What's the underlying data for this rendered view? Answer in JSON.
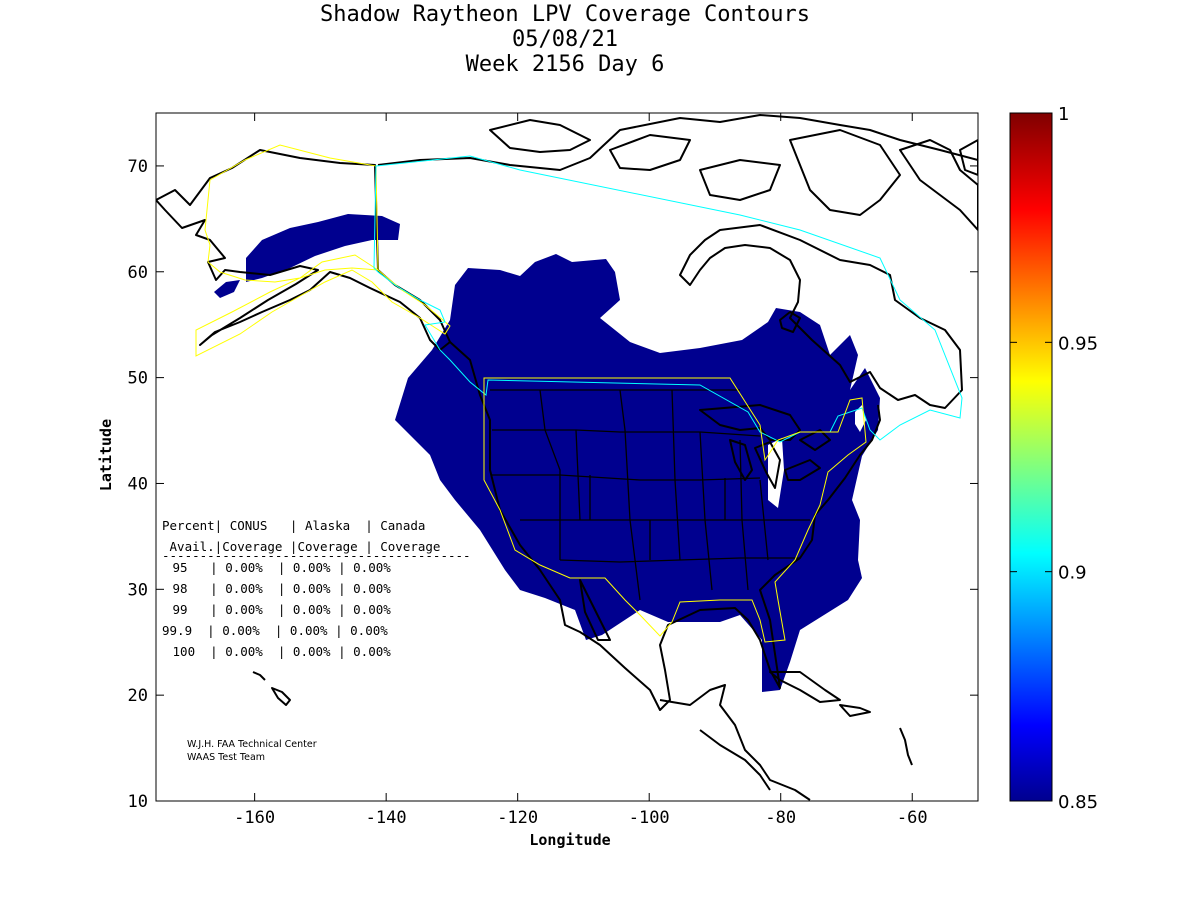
{
  "title": {
    "line1": "Shadow Raytheon LPV Coverage Contours",
    "line2": "05/08/21",
    "line3": "Week 2156 Day 6"
  },
  "axes": {
    "xlabel": "Longitude",
    "ylabel": "Latitude",
    "xlim": [
      -175,
      -50
    ],
    "ylim": [
      10,
      75
    ],
    "xticks": [
      -160,
      -140,
      -120,
      -100,
      -80,
      -60
    ],
    "yticks": [
      10,
      20,
      30,
      40,
      50,
      60,
      70
    ],
    "xtick_labels": [
      "-160",
      "-140",
      "-120",
      "-100",
      "-80",
      "-60"
    ],
    "ytick_labels": [
      "10",
      "20",
      "30",
      "40",
      "50",
      "60",
      "70"
    ]
  },
  "colorbar": {
    "min": 0.85,
    "max": 1,
    "labels": [
      "1",
      "0.95",
      "0.9",
      "0.85"
    ],
    "values": [
      1,
      0.95,
      0.9,
      0.85
    ],
    "colormap": "jet"
  },
  "table": {
    "header1": "Percent| CONUS   | Alaska  | Canada",
    "header2": " Avail.|Coverage |Coverage | Coverage",
    "separator": "-----------------------------------------",
    "rows": [
      " 95   | 0.00%  | 0.00% | 0.00%",
      " 98   | 0.00%  | 0.00% | 0.00%",
      " 99   | 0.00%  | 0.00% | 0.00%",
      "99.9  | 0.00%  | 0.00% | 0.00%",
      " 100  | 0.00%  | 0.00% | 0.00%"
    ]
  },
  "credit": {
    "line1": "W.J.H. FAA Technical Center",
    "line2": "WAAS Test Team"
  },
  "colors": {
    "coverage": "#00008f",
    "conus_boundary": "#ffff00",
    "alaska_boundary": "#ffff00",
    "canada_boundary": "#00ffff",
    "coastline": "#000000"
  }
}
